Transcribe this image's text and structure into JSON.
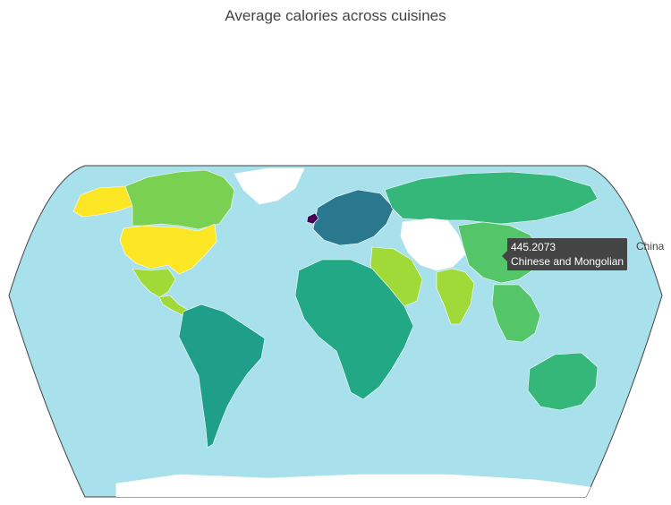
{
  "title": "Average calories across cuisines",
  "map": {
    "type": "choropleth",
    "projection": "robinson",
    "ocean_color": "#a8e0eb",
    "land_nodata_color": "#ffffff",
    "border_color": "#ffffff",
    "frame_color": "#444444",
    "colorscale": "viridis",
    "regions": [
      {
        "name": "United States",
        "color": "#fde725"
      },
      {
        "name": "Canada",
        "color": "#7ad151"
      },
      {
        "name": "Alaska",
        "color": "#fde725"
      },
      {
        "name": "Greenland",
        "color": "#ffffff"
      },
      {
        "name": "Mexico",
        "color": "#a0da39"
      },
      {
        "name": "Central America",
        "color": "#a0da39"
      },
      {
        "name": "South America",
        "color": "#1f9e89"
      },
      {
        "name": "Africa",
        "color": "#22a884"
      },
      {
        "name": "Europe",
        "color": "#2a788e"
      },
      {
        "name": "Russia",
        "color": "#35b779"
      },
      {
        "name": "Middle East",
        "color": "#a0da39"
      },
      {
        "name": "India",
        "color": "#a0da39"
      },
      {
        "name": "China",
        "color": "#54c568"
      },
      {
        "name": "Southeast Asia",
        "color": "#54c568"
      },
      {
        "name": "Australia",
        "color": "#35b779"
      },
      {
        "name": "Ireland",
        "color": "#440154"
      },
      {
        "name": "Antarctica",
        "color": "#ffffff"
      }
    ]
  },
  "tooltip": {
    "value": "445.2073",
    "cuisine": "Chinese and Mongolian",
    "location": "China"
  }
}
